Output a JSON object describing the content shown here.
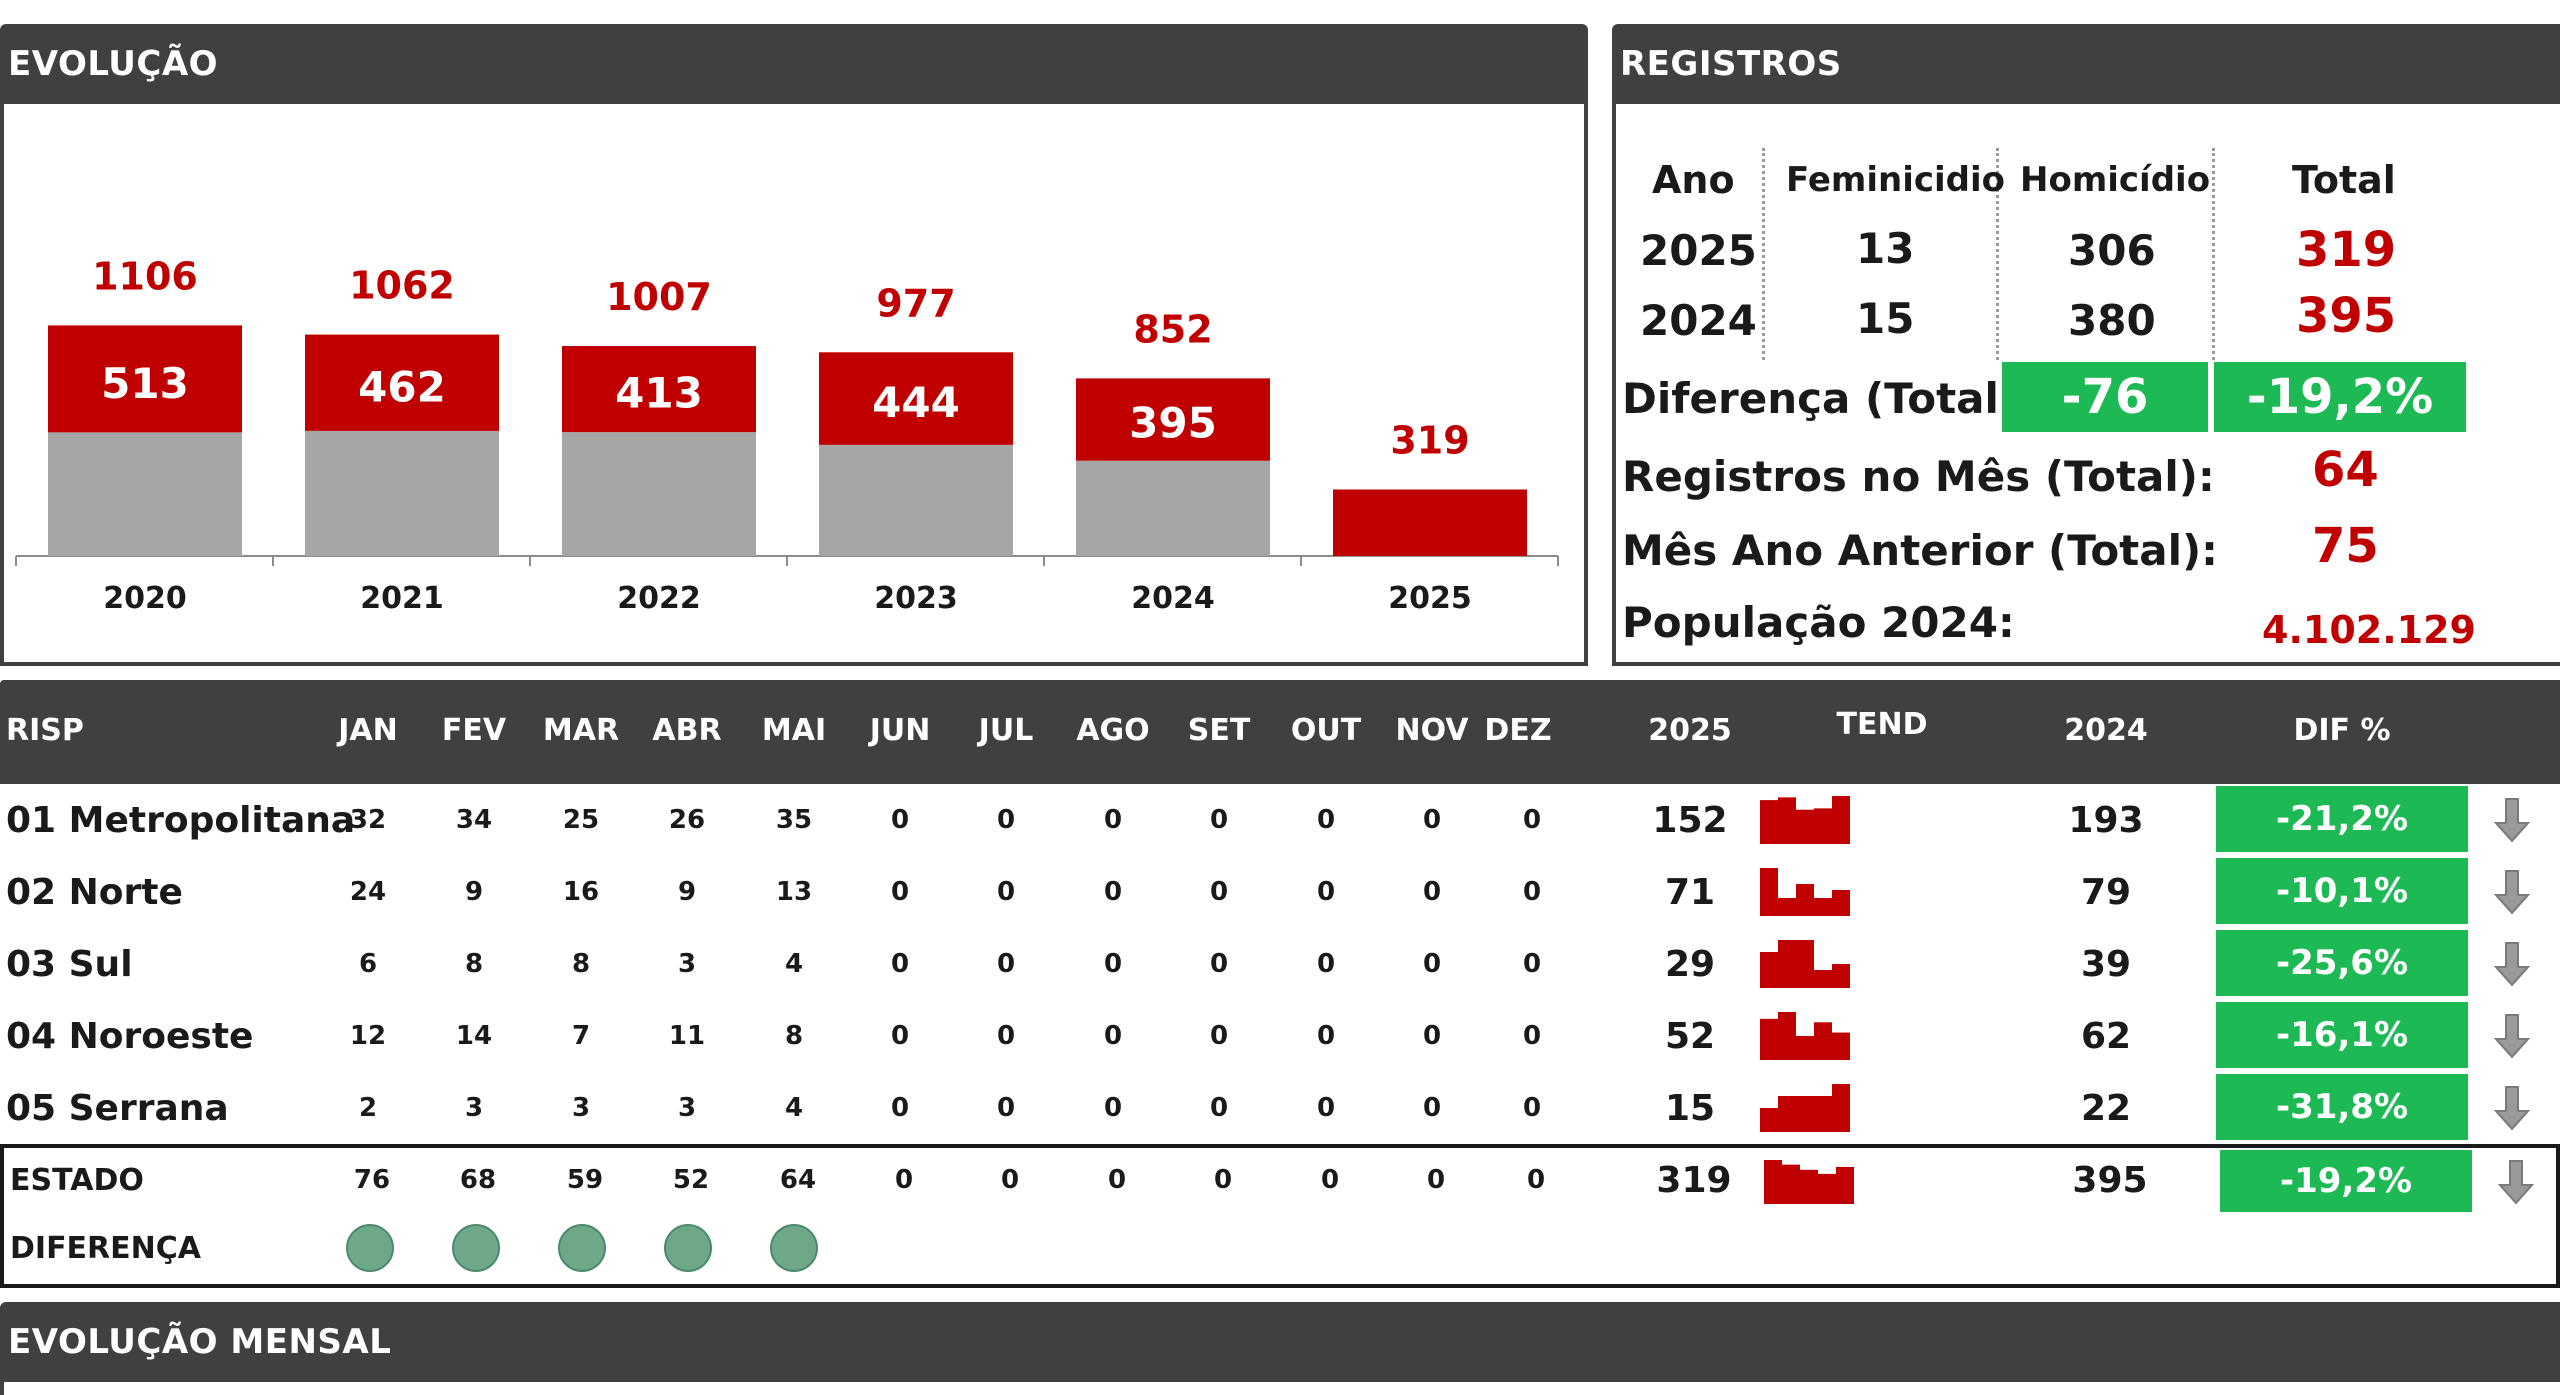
{
  "evolucao": {
    "title": "EVOLUÇÃO",
    "chart_data": {
      "type": "bar",
      "categories": [
        "2020",
        "2021",
        "2022",
        "2023",
        "2024",
        "2025"
      ],
      "series": [
        {
          "values": [
            593,
            600,
            594,
            533,
            457,
            0
          ],
          "color": "#a6a6a6"
        },
        {
          "values": [
            513,
            462,
            413,
            444,
            395,
            319
          ],
          "color": "#c00000"
        }
      ],
      "segment_labels": [
        "513",
        "462",
        "413",
        "444",
        "395",
        ""
      ],
      "totals": [
        1106,
        1062,
        1007,
        977,
        852,
        319
      ],
      "total_labels": [
        "1106",
        "1062",
        "1007",
        "977",
        "852",
        "319"
      ],
      "title": "",
      "xlabel": "",
      "ylabel": "",
      "ylim": [
        0,
        1280
      ],
      "grid": false,
      "legend": "none"
    }
  },
  "registros": {
    "title": "REGISTROS",
    "headers": {
      "ano": "Ano",
      "fem": "Feminicidio",
      "hom": "Homicídio",
      "total": "Total"
    },
    "rows": [
      {
        "ano": "2025",
        "fem": "13",
        "hom": "306",
        "total": "319"
      },
      {
        "ano": "2024",
        "fem": "15",
        "hom": "380",
        "total": "395"
      }
    ],
    "diferenca_label": "Diferença (Total):",
    "diferenca_abs": "-76",
    "diferenca_pct": "-19,2%",
    "mes_label": "Registros no Mês (Total):",
    "mes_value": "64",
    "mes_ant_label": "Mês Ano Anterior (Total):",
    "mes_ant_value": "75",
    "pop_label": "População 2024:",
    "pop_value": "4.102.129"
  },
  "tabela": {
    "headers": {
      "risp": "RISP",
      "months": [
        "JAN",
        "FEV",
        "MAR",
        "ABR",
        "MAI",
        "JUN",
        "JUL",
        "AGO",
        "SET",
        "OUT",
        "NOV",
        "DEZ"
      ],
      "y2025": "2025",
      "tend": "TEND",
      "y2024": "2024",
      "dif": "DIF %"
    },
    "rows": [
      {
        "name": "01 Metropolitana",
        "months": [
          "32",
          "34",
          "25",
          "26",
          "35",
          "0",
          "0",
          "0",
          "0",
          "0",
          "0",
          "0"
        ],
        "y2025": "152",
        "y2024": "193",
        "dif": "-21,2%",
        "trend": [
          32,
          34,
          25,
          26,
          35
        ]
      },
      {
        "name": "02 Norte",
        "months": [
          "24",
          "9",
          "16",
          "9",
          "13",
          "0",
          "0",
          "0",
          "0",
          "0",
          "0",
          "0"
        ],
        "y2025": "71",
        "y2024": "79",
        "dif": "-10,1%",
        "trend": [
          24,
          9,
          16,
          9,
          13
        ]
      },
      {
        "name": "03 Sul",
        "months": [
          "6",
          "8",
          "8",
          "3",
          "4",
          "0",
          "0",
          "0",
          "0",
          "0",
          "0",
          "0"
        ],
        "y2025": "29",
        "y2024": "39",
        "dif": "-25,6%",
        "trend": [
          6,
          8,
          8,
          3,
          4
        ]
      },
      {
        "name": "04 Noroeste",
        "months": [
          "12",
          "14",
          "7",
          "11",
          "8",
          "0",
          "0",
          "0",
          "0",
          "0",
          "0",
          "0"
        ],
        "y2025": "52",
        "y2024": "62",
        "dif": "-16,1%",
        "trend": [
          12,
          14,
          7,
          11,
          8
        ]
      },
      {
        "name": "05 Serrana",
        "months": [
          "2",
          "3",
          "3",
          "3",
          "4",
          "0",
          "0",
          "0",
          "0",
          "0",
          "0",
          "0"
        ],
        "y2025": "15",
        "y2024": "22",
        "dif": "-31,8%",
        "trend": [
          2,
          3,
          3,
          3,
          4
        ]
      }
    ],
    "estado": {
      "name": "ESTADO",
      "months": [
        "76",
        "68",
        "59",
        "52",
        "64",
        "0",
        "0",
        "0",
        "0",
        "0",
        "0",
        "0"
      ],
      "y2025": "319",
      "y2024": "395",
      "dif": "-19,2%",
      "trend": [
        76,
        68,
        59,
        52,
        64
      ]
    },
    "diferenca": {
      "label": "DIFERENÇA",
      "indicators": 5,
      "indicator_color": "#6fa889"
    },
    "arrow_icon": "arrow-down-icon",
    "dif_color": "#1db954"
  },
  "evolucao_mensal": {
    "title": "EVOLUÇÃO MENSAL"
  }
}
